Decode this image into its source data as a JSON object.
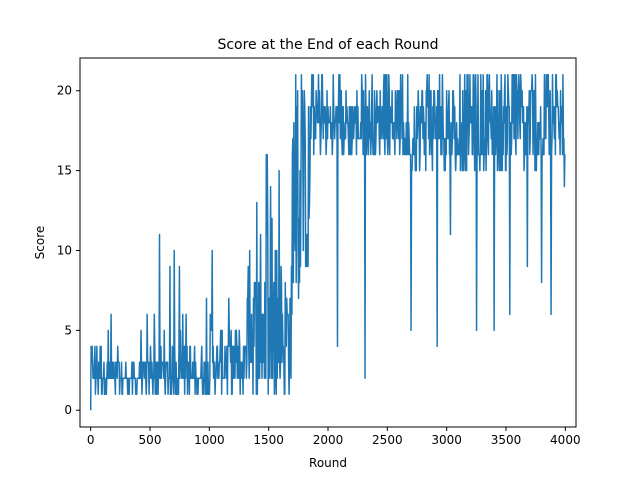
{
  "chart_data": {
    "type": "line",
    "title": "Score at the End of each Round",
    "xlabel": "Round",
    "ylabel": "Score",
    "xlim": [
      -90,
      4090
    ],
    "ylim": [
      -1.05,
      22.05
    ],
    "grid": false,
    "legend": "none",
    "x_ticks": [
      0,
      500,
      1000,
      1500,
      2000,
      2500,
      3000,
      3500,
      4000
    ],
    "x_tick_labels": [
      "0",
      "500",
      "1000",
      "1500",
      "2000",
      "2500",
      "3000",
      "3500",
      "4000"
    ],
    "y_ticks": [
      0,
      5,
      10,
      15,
      20
    ],
    "y_tick_labels": [
      "0",
      "5",
      "10",
      "15",
      "20"
    ],
    "series": [
      {
        "color": "#1f77b4",
        "x_start": 0,
        "x_end": 4000,
        "phases": [
          {
            "from": 0,
            "to": 100,
            "base": 1,
            "top": 5,
            "spike_max": 5,
            "typical_min": 1,
            "typical_max": 4
          },
          {
            "from": 100,
            "to": 500,
            "base": 1,
            "top": 3,
            "spike_max": 7,
            "typical_min": 1,
            "typical_max": 3
          },
          {
            "from": 500,
            "to": 1000,
            "base": 1,
            "top": 4,
            "spike_max": 11,
            "typical_min": 1,
            "typical_max": 4
          },
          {
            "from": 1000,
            "to": 1300,
            "base": 1,
            "top": 5,
            "spike_max": 12,
            "typical_min": 1,
            "typical_max": 5
          },
          {
            "from": 1300,
            "to": 1700,
            "base": 1,
            "top": 8,
            "spike_max": 17,
            "typical_min": 1,
            "typical_max": 9
          },
          {
            "from": 1700,
            "to": 1850,
            "base": 5,
            "top": 18,
            "spike_max": 21,
            "typical_min": 8,
            "typical_max": 20
          },
          {
            "from": 1850,
            "to": 2600,
            "base": 17,
            "top": 20,
            "spike_max": 21,
            "typical_min": 16,
            "typical_max": 20
          },
          {
            "from": 2600,
            "to": 4000,
            "base": 16,
            "top": 21,
            "spike_max": 21,
            "typical_min": 15,
            "typical_max": 21
          }
        ],
        "deep_dips": [
          {
            "x": 1760,
            "y": 8
          },
          {
            "x": 1790,
            "y": 10
          },
          {
            "x": 1830,
            "y": 9
          },
          {
            "x": 2080,
            "y": 4
          },
          {
            "x": 2310,
            "y": 2
          },
          {
            "x": 2700,
            "y": 5
          },
          {
            "x": 2920,
            "y": 4
          },
          {
            "x": 3030,
            "y": 11
          },
          {
            "x": 3250,
            "y": 5
          },
          {
            "x": 3400,
            "y": 5
          },
          {
            "x": 3530,
            "y": 6
          },
          {
            "x": 3680,
            "y": 9
          },
          {
            "x": 3800,
            "y": 8
          },
          {
            "x": 3880,
            "y": 6
          },
          {
            "x": 3990,
            "y": 14
          }
        ]
      }
    ]
  }
}
